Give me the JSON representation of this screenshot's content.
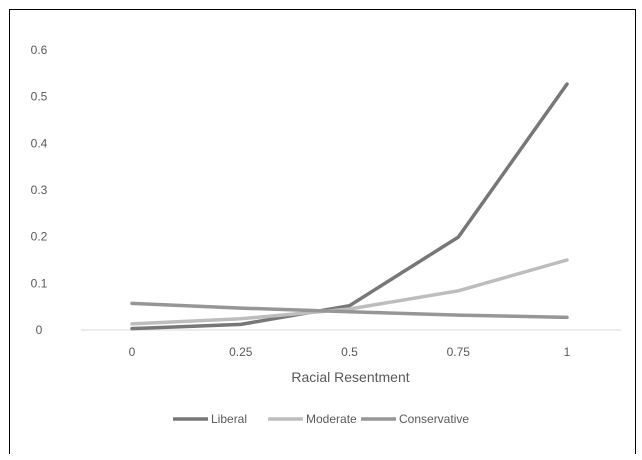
{
  "chart_data": {
    "type": "line",
    "title": "",
    "xlabel": "Racial Resentment",
    "ylabel": "",
    "x": [
      0,
      0.25,
      0.5,
      0.75,
      1
    ],
    "x_tick_labels": [
      "0",
      "0.25",
      "0.5",
      "0.75",
      "1"
    ],
    "ylim": [
      0,
      0.6
    ],
    "y_ticks": [
      0,
      0.1,
      0.2,
      0.3,
      0.4,
      0.5,
      0.6
    ],
    "y_tick_labels": [
      "0",
      "0.1",
      "0.2",
      "0.3",
      "0.4",
      "0.5",
      "0.6"
    ],
    "grid": false,
    "legend_position": "bottom",
    "series": [
      {
        "name": "Liberal",
        "color": "#777777",
        "values": [
          0.003,
          0.012,
          0.052,
          0.199,
          0.527
        ]
      },
      {
        "name": "Moderate",
        "color": "#BDBDBD",
        "values": [
          0.013,
          0.024,
          0.045,
          0.084,
          0.15
        ]
      },
      {
        "name": "Conservative",
        "color": "#969696",
        "values": [
          0.057,
          0.047,
          0.039,
          0.032,
          0.027
        ]
      }
    ]
  }
}
